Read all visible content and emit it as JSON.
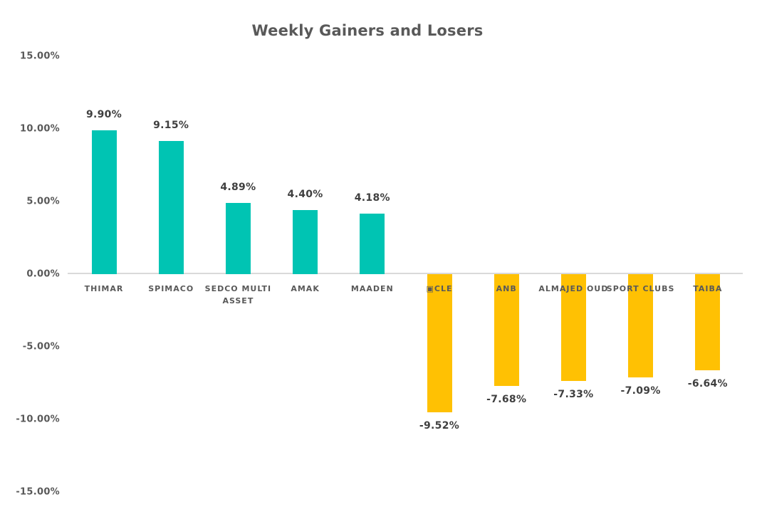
{
  "page": {
    "background_color": "#FFFFFF"
  },
  "chart_data": {
    "type": "bar",
    "title": "Weekly Gainers and Losers",
    "xlabel": "",
    "ylabel": "",
    "grid": false,
    "legend_position": "none",
    "ylim": [
      -15,
      15
    ],
    "y_ticks": [
      {
        "label": "15.00%",
        "value": 15
      },
      {
        "label": "10.00%",
        "value": 10
      },
      {
        "label": "5.00%",
        "value": 5
      },
      {
        "label": "0.00%",
        "value": 0
      },
      {
        "label": "-5.00%",
        "value": -5
      },
      {
        "label": "-10.00%",
        "value": -10
      },
      {
        "label": "-15.00%",
        "value": -15
      }
    ],
    "categories": [
      "THIMAR",
      "SPIMACO",
      "SEDCO MULTI ASSET",
      "AMAK",
      "MAADEN",
      "▣CLE",
      "ANB",
      "ALMAJED OUD",
      "SPORT CLUBS",
      "TAIBA"
    ],
    "values": [
      9.9,
      9.15,
      4.89,
      4.4,
      4.18,
      -9.52,
      -7.68,
      -7.33,
      -7.09,
      -6.64
    ],
    "value_labels": [
      "9.90%",
      "9.15%",
      "4.89%",
      "4.40%",
      "4.18%",
      "-9.52%",
      "-7.68%",
      "-7.33%",
      "-7.09%",
      "-6.64%"
    ],
    "colors": {
      "positive_bar": "#00C4B3",
      "negative_bar": "#FFC103",
      "axis_line": "#D9D9D9",
      "title_text": "#595959",
      "tick_text": "#595959",
      "value_text": "#3F3F3F",
      "category_text": "#595959"
    }
  }
}
